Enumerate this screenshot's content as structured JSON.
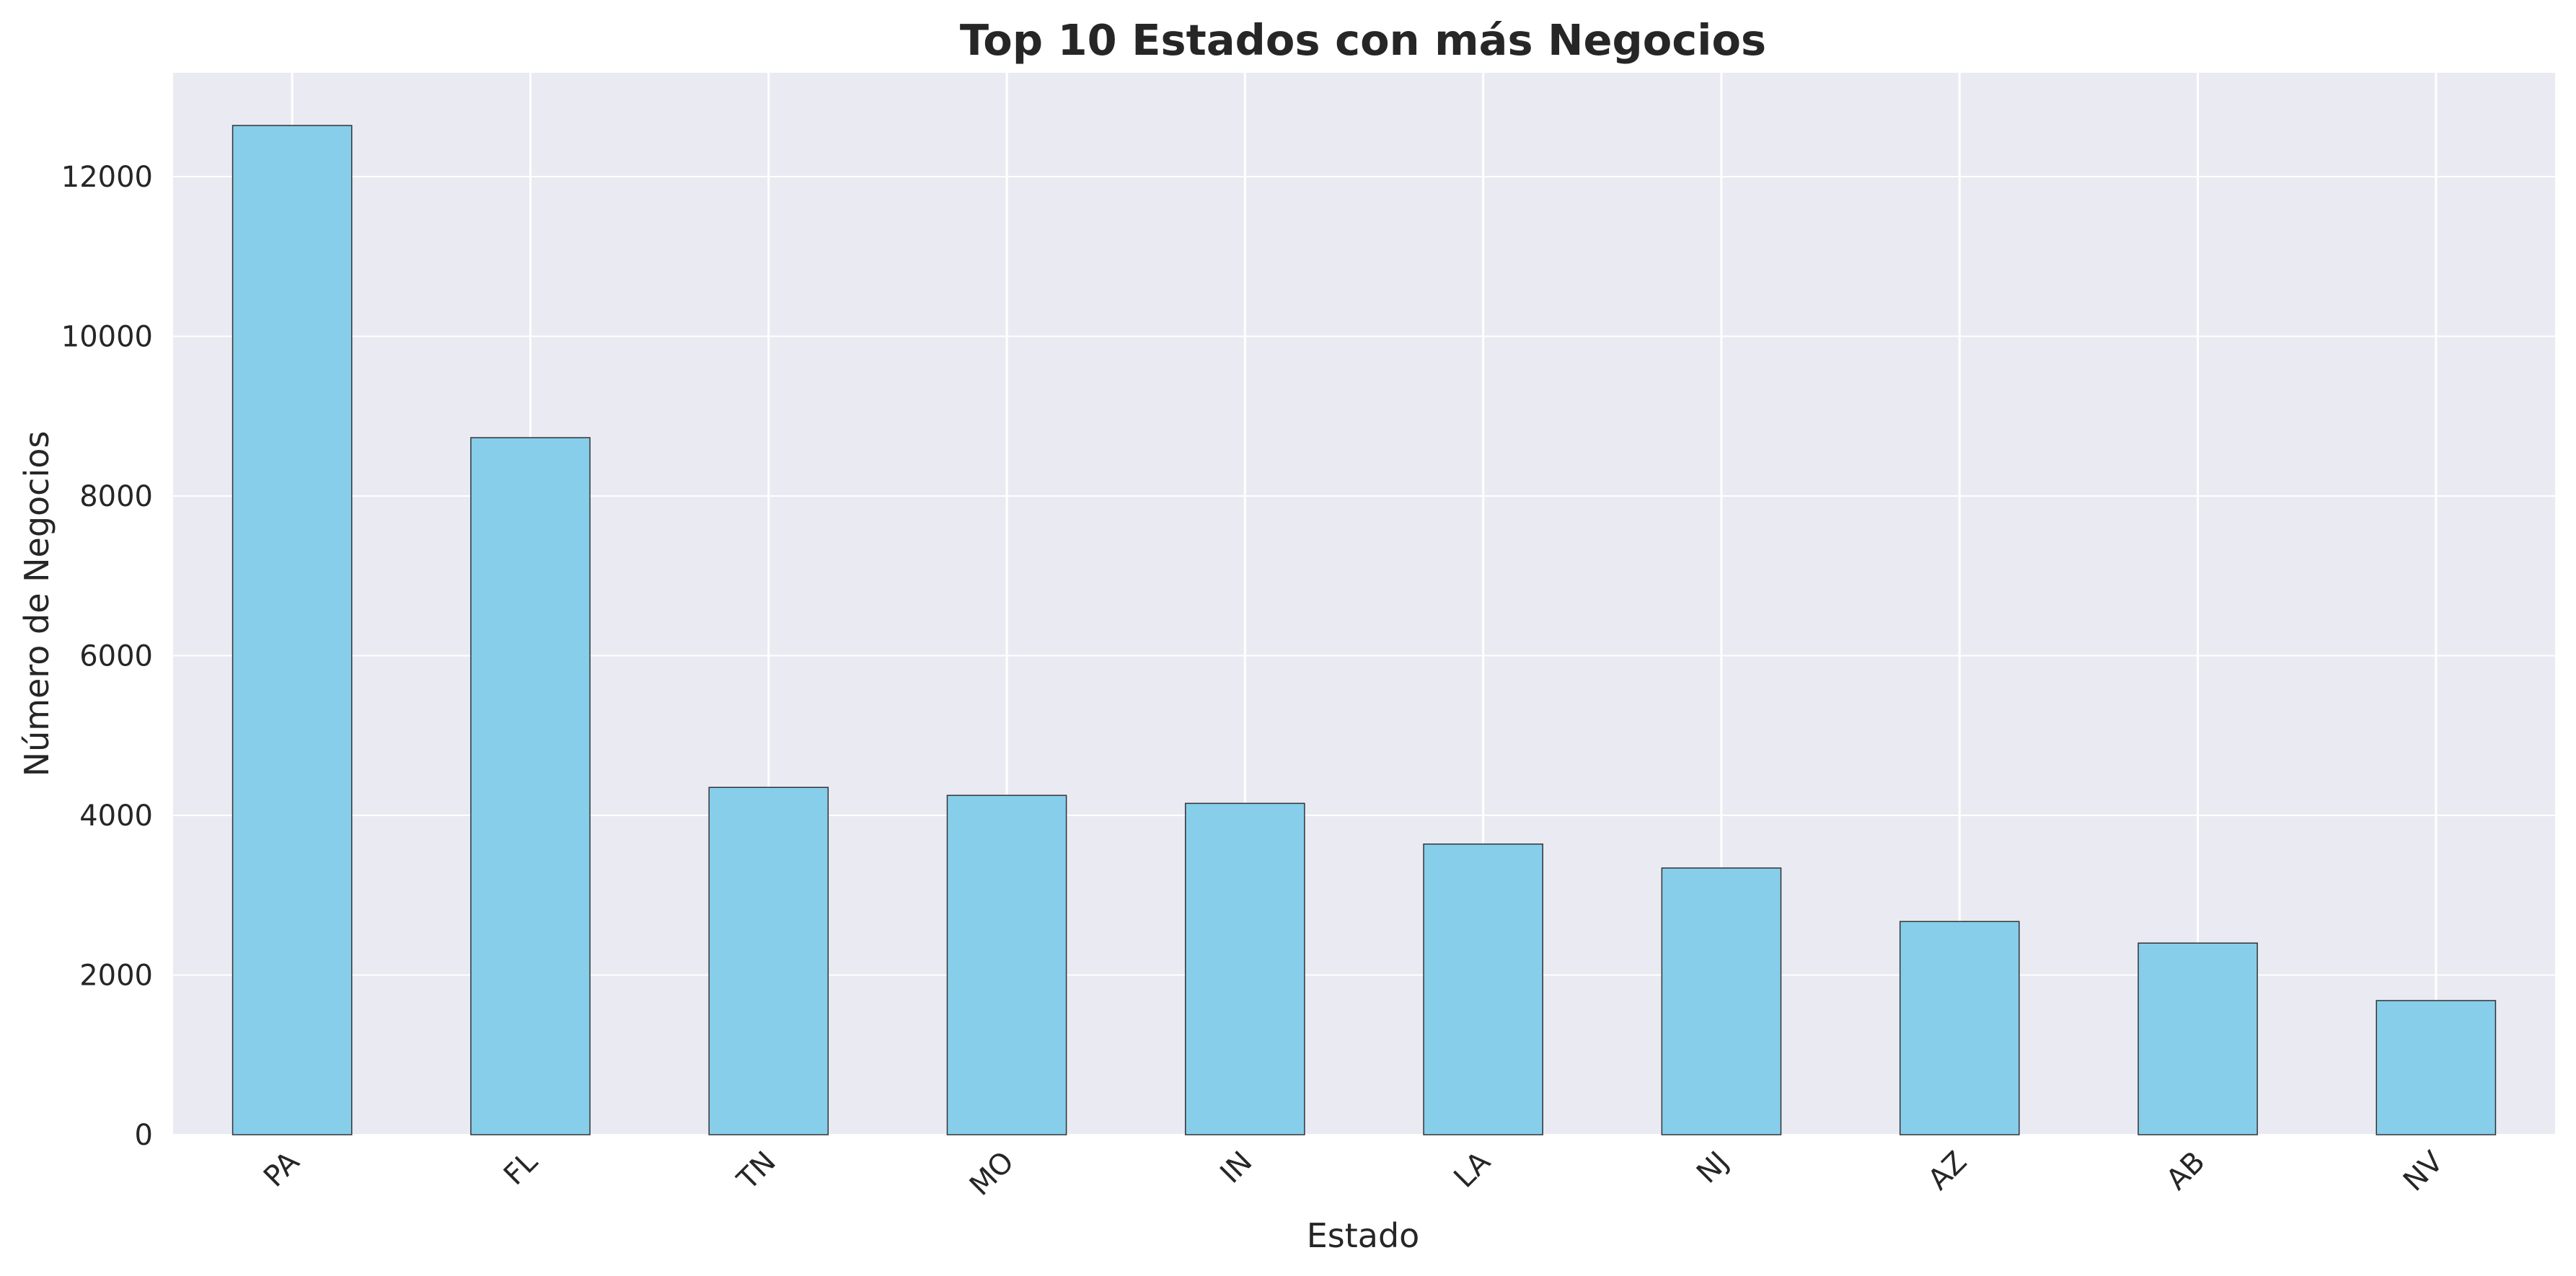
{
  "chart_data": {
    "type": "bar",
    "title": "Top 10 Estados con más Negocios",
    "xlabel": "Estado",
    "ylabel": "Número de Negocios",
    "categories": [
      "PA",
      "FL",
      "TN",
      "MO",
      "IN",
      "LA",
      "NJ",
      "AZ",
      "AB",
      "NV"
    ],
    "values": [
      12640,
      8730,
      4350,
      4250,
      4150,
      3640,
      3340,
      2670,
      2400,
      1680
    ],
    "ylim": [
      0,
      13300
    ],
    "yticks": [
      0,
      2000,
      4000,
      6000,
      8000,
      10000,
      12000
    ],
    "grid": true,
    "xtick_rotation": 45,
    "colors": {
      "bar_fill": "#87CEEB",
      "bar_edge": "#333333",
      "plot_background": "#EAEAF2",
      "grid": "#FFFFFF",
      "text": "#262626"
    }
  }
}
